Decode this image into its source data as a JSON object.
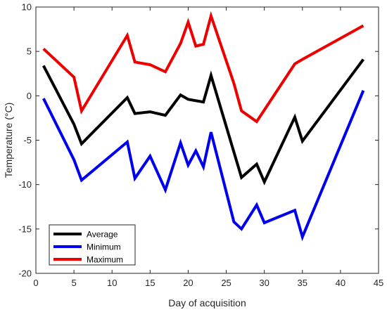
{
  "chart_data": {
    "type": "line",
    "title": "",
    "xlabel": "Day of acquisition",
    "ylabel": "Temperature (°C)",
    "xlim": [
      0,
      45
    ],
    "ylim": [
      -20,
      10
    ],
    "xticks": [
      0,
      5,
      10,
      15,
      20,
      25,
      30,
      35,
      40,
      45
    ],
    "yticks": [
      -20,
      -15,
      -10,
      -5,
      0,
      5,
      10
    ],
    "grid": false,
    "legend_position": "bottom-left",
    "series": [
      {
        "name": "Average",
        "color": "#000000",
        "x": [
          1,
          5,
          6,
          12,
          13,
          15,
          17,
          19,
          20,
          22,
          23,
          27,
          29,
          30,
          34,
          35,
          43
        ],
        "y": [
          3.4,
          -3.2,
          -5.4,
          -0.2,
          -2.0,
          -1.8,
          -2.2,
          0.1,
          -0.4,
          -0.7,
          2.3,
          -9.2,
          -7.7,
          -9.7,
          -2.4,
          -5.1,
          4.1
        ]
      },
      {
        "name": "Minimum",
        "color": "#0000ee",
        "x": [
          1,
          5,
          6,
          12,
          13,
          15,
          17,
          19,
          20,
          21,
          22,
          23,
          26,
          27,
          29,
          30,
          34,
          35,
          43
        ],
        "y": [
          -0.3,
          -7.2,
          -9.5,
          -5.2,
          -9.3,
          -6.8,
          -10.6,
          -5.3,
          -7.8,
          -6.2,
          -8.0,
          -4.1,
          -14.2,
          -15.0,
          -12.3,
          -14.3,
          -12.9,
          -15.9,
          0.6
        ]
      },
      {
        "name": "Maximum",
        "color": "#ee0000",
        "x": [
          1,
          5,
          6,
          12,
          13,
          15,
          17,
          19,
          20,
          21,
          22,
          23,
          26,
          27,
          29,
          34,
          35,
          43
        ],
        "y": [
          5.3,
          2.1,
          -1.7,
          6.8,
          3.8,
          3.5,
          2.7,
          5.9,
          8.3,
          5.6,
          5.8,
          9.0,
          1.4,
          -1.7,
          -2.9,
          3.6,
          4.1,
          7.9
        ]
      }
    ]
  }
}
